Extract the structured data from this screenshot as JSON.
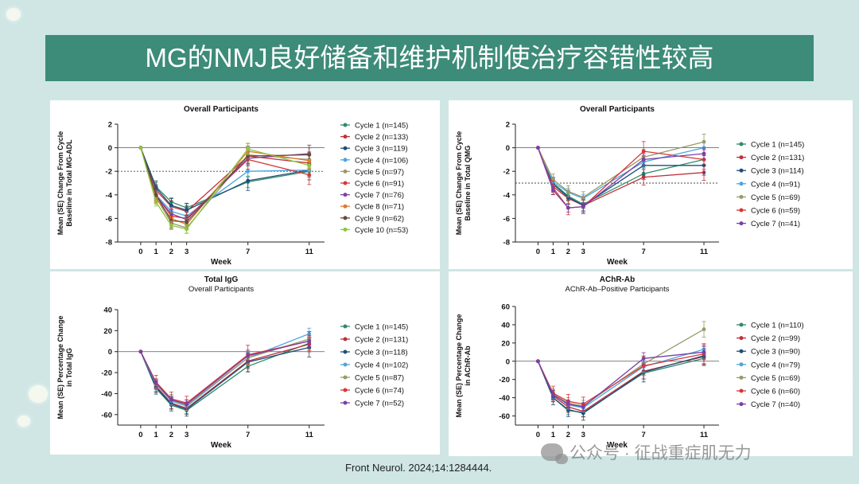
{
  "header": {
    "title": "MG的NMJ良好储备和维护机制使治疗容错性较高"
  },
  "citation": "Front Neurol. 2024;14:1284444.",
  "watermark": "公众号 · 征战重症肌无力",
  "colors": {
    "banner": "#3d8b79",
    "background": "#cfe6e5",
    "cycle_1": "#2e8b6a",
    "cycle_2": "#c0303a",
    "cycle_3": "#1f4e79",
    "cycle_4": "#4da6e0",
    "cycle_5": "#9a9a6a",
    "cycle_6": "#d93636",
    "cycle_7": "#7b3fa8",
    "cycle_8": "#e07a2e",
    "cycle_9": "#6a4a3a",
    "cycle_10": "#8cc63f"
  },
  "chart_data": [
    {
      "type": "line",
      "title": "Overall Participants",
      "subtitle": "",
      "xlabel": "Week",
      "ylabel": [
        "Mean (SE) Change From Cycle",
        "Baseline in Total MG-ADL"
      ],
      "x": [
        0,
        1,
        2,
        3,
        7,
        11
      ],
      "ylim": [
        -8,
        2
      ],
      "yticks": [
        2,
        0,
        -2,
        -4,
        -6,
        -8
      ],
      "reference_line": -2,
      "legend_position": "right",
      "series": [
        {
          "name": "Cycle 1 (n=145)",
          "color": "#2e8b6a",
          "values": [
            0,
            -3.3,
            -4.6,
            -5.1,
            -2.9,
            -2.0
          ]
        },
        {
          "name": "Cycle 2 (n=133)",
          "color": "#c0303a",
          "values": [
            0,
            -3.6,
            -5.0,
            -5.4,
            -0.7,
            -1.3
          ]
        },
        {
          "name": "Cycle 3 (n=119)",
          "color": "#1f4e79",
          "values": [
            0,
            -3.4,
            -4.9,
            -5.3,
            -2.8,
            -1.9
          ]
        },
        {
          "name": "Cycle 4 (n=106)",
          "color": "#4da6e0",
          "values": [
            0,
            -4.0,
            -5.4,
            -5.8,
            -2.0,
            -1.9
          ]
        },
        {
          "name": "Cycle 5 (n=97)",
          "color": "#9a9a6a",
          "values": [
            0,
            -4.2,
            -6.4,
            -6.8,
            -0.6,
            -1.0
          ]
        },
        {
          "name": "Cycle 6 (n=91)",
          "color": "#d93636",
          "values": [
            0,
            -4.0,
            -5.8,
            -6.0,
            -1.0,
            -2.3
          ]
        },
        {
          "name": "Cycle 7 (n=76)",
          "color": "#7b3fa8",
          "values": [
            0,
            -4.1,
            -5.6,
            -6.1,
            -0.9,
            -0.5
          ]
        },
        {
          "name": "Cycle 8 (n=71)",
          "color": "#e07a2e",
          "values": [
            0,
            -4.3,
            -6.0,
            -6.5,
            -0.3,
            -1.1
          ]
        },
        {
          "name": "Cycle 9 (n=62)",
          "color": "#6a4a3a",
          "values": [
            0,
            -4.0,
            -6.2,
            -6.3,
            -0.7,
            -0.6
          ]
        },
        {
          "name": "Cycle 10 (n=53)",
          "color": "#8cc63f",
          "values": [
            0,
            -4.6,
            -6.6,
            -6.9,
            -0.1,
            -1.5
          ]
        }
      ]
    },
    {
      "type": "line",
      "title": "Overall Participants",
      "subtitle": "",
      "xlabel": "Week",
      "ylabel": [
        "Mean (SE) Change From Cycle",
        "Baseline in Total QMG"
      ],
      "x": [
        0,
        1,
        2,
        3,
        7,
        11
      ],
      "ylim": [
        -8,
        2
      ],
      "yticks": [
        2,
        0,
        -2,
        -4,
        -6,
        -8
      ],
      "reference_line": -3,
      "legend_position": "right",
      "series": [
        {
          "name": "Cycle 1 (n=145)",
          "color": "#2e8b6a",
          "values": [
            0,
            -3.0,
            -4.1,
            -4.8,
            -2.2,
            -1.0
          ]
        },
        {
          "name": "Cycle 2 (n=131)",
          "color": "#c0303a",
          "values": [
            0,
            -3.3,
            -4.3,
            -4.9,
            -2.5,
            -2.1
          ]
        },
        {
          "name": "Cycle 3 (n=114)",
          "color": "#1f4e79",
          "values": [
            0,
            -3.1,
            -4.2,
            -4.9,
            -1.5,
            -1.5
          ]
        },
        {
          "name": "Cycle 4 (n=91)",
          "color": "#4da6e0",
          "values": [
            0,
            -2.9,
            -3.8,
            -4.3,
            -1.2,
            0.0
          ]
        },
        {
          "name": "Cycle 5 (n=69)",
          "color": "#9a9a6a",
          "values": [
            0,
            -2.7,
            -3.7,
            -4.2,
            -0.8,
            0.5
          ]
        },
        {
          "name": "Cycle 6 (n=59)",
          "color": "#d93636",
          "values": [
            0,
            -3.4,
            -5.1,
            -5.0,
            -0.3,
            -1.0
          ]
        },
        {
          "name": "Cycle 7 (n=41)",
          "color": "#7b3fa8",
          "values": [
            0,
            -3.6,
            -5.1,
            -5.0,
            -1.0,
            -0.5
          ]
        }
      ]
    },
    {
      "type": "line",
      "title": "Total IgG",
      "subtitle": "Overall Participants",
      "xlabel": "Week",
      "ylabel": [
        "Mean (SE) Percentage Change",
        "in Total IgG"
      ],
      "x": [
        0,
        1,
        2,
        3,
        7,
        11
      ],
      "ylim": [
        -70,
        40
      ],
      "yticks": [
        40,
        20,
        0,
        -20,
        -40,
        -60
      ],
      "reference_line": null,
      "legend_position": "right",
      "series": [
        {
          "name": "Cycle 1 (n=145)",
          "color": "#2e8b6a",
          "values": [
            0,
            -35,
            -51,
            -56,
            -14,
            8
          ]
        },
        {
          "name": "Cycle 2 (n=131)",
          "color": "#c0303a",
          "values": [
            0,
            -33,
            -49,
            -54,
            -9,
            7
          ]
        },
        {
          "name": "Cycle 3 (n=118)",
          "color": "#1f4e79",
          "values": [
            0,
            -34,
            -50,
            -55,
            -10,
            4
          ]
        },
        {
          "name": "Cycle 4 (n=102)",
          "color": "#4da6e0",
          "values": [
            0,
            -31,
            -47,
            -52,
            -6,
            17
          ]
        },
        {
          "name": "Cycle 5 (n=87)",
          "color": "#9a9a6a",
          "values": [
            0,
            -31,
            -46,
            -51,
            -6,
            12
          ]
        },
        {
          "name": "Cycle 6 (n=74)",
          "color": "#d93636",
          "values": [
            0,
            -29,
            -45,
            -49,
            -3,
            10
          ]
        },
        {
          "name": "Cycle 7 (n=52)",
          "color": "#7b3fa8",
          "values": [
            0,
            -30,
            -46,
            -50,
            -4,
            10
          ]
        }
      ]
    },
    {
      "type": "line",
      "title": "AChR-Ab",
      "subtitle": "AChR-Ab–Positive Participants",
      "xlabel": "Week",
      "ylabel": [
        "Mean (SE) Percentage Change",
        "in AChR-Ab"
      ],
      "x": [
        0,
        1,
        2,
        3,
        7,
        11
      ],
      "ylim": [
        -70,
        60
      ],
      "yticks": [
        60,
        40,
        20,
        0,
        -20,
        -40,
        -60
      ],
      "reference_line": null,
      "legend_position": "right",
      "series": [
        {
          "name": "Cycle 1 (n=110)",
          "color": "#2e8b6a",
          "values": [
            0,
            -40,
            -54,
            -56,
            -13,
            3
          ]
        },
        {
          "name": "Cycle 2 (n=99)",
          "color": "#c0303a",
          "values": [
            0,
            -38,
            -50,
            -55,
            -11,
            5
          ]
        },
        {
          "name": "Cycle 3 (n=90)",
          "color": "#1f4e79",
          "values": [
            0,
            -40,
            -53,
            -57,
            -12,
            6
          ]
        },
        {
          "name": "Cycle 4 (n=79)",
          "color": "#4da6e0",
          "values": [
            0,
            -36,
            -48,
            -51,
            -6,
            13
          ]
        },
        {
          "name": "Cycle 5 (n=69)",
          "color": "#9a9a6a",
          "values": [
            0,
            -36,
            -46,
            -49,
            -3,
            35
          ]
        },
        {
          "name": "Cycle 6 (n=60)",
          "color": "#d93636",
          "values": [
            0,
            -35,
            -44,
            -47,
            -5,
            8
          ]
        },
        {
          "name": "Cycle 7 (n=40)",
          "color": "#7b3fa8",
          "values": [
            0,
            -37,
            -47,
            -50,
            3,
            10
          ]
        }
      ]
    }
  ]
}
